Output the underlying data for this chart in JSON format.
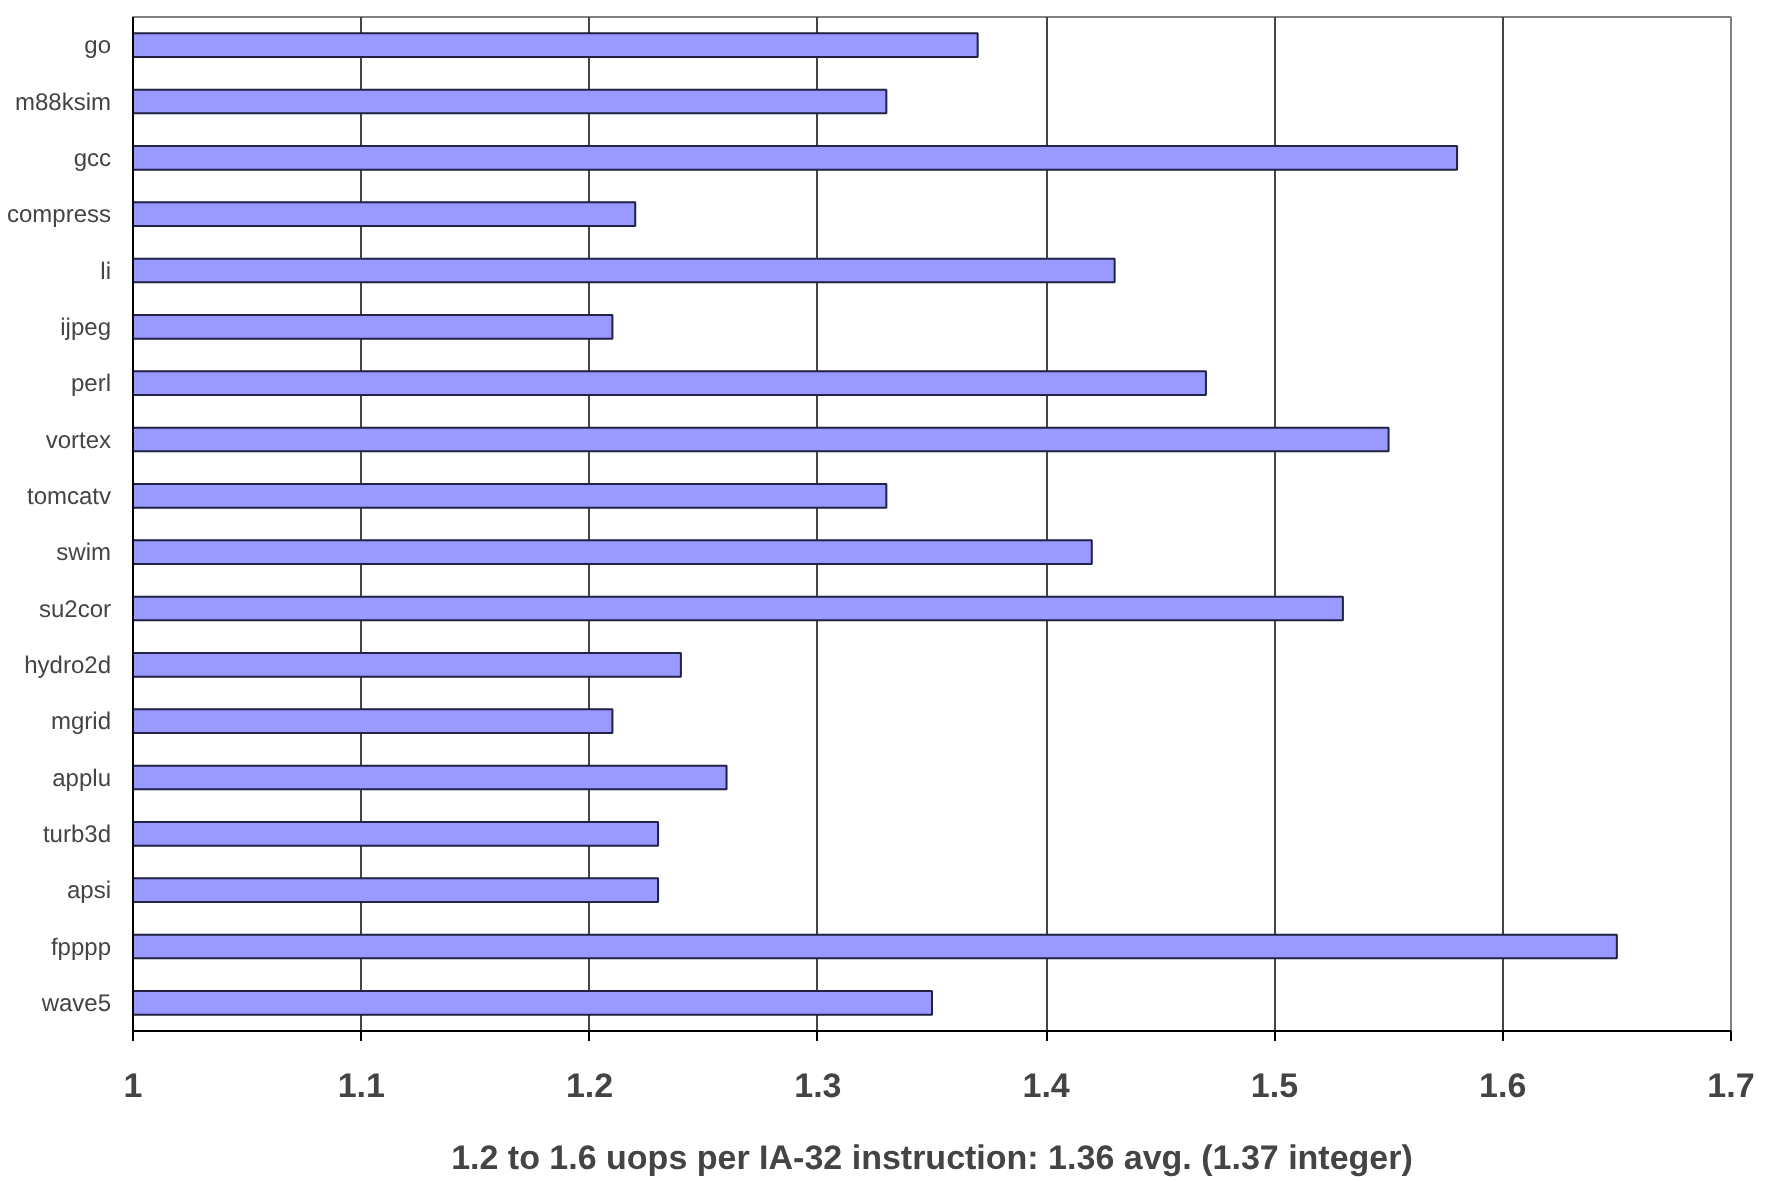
{
  "chart_data": {
    "type": "bar",
    "orientation": "horizontal",
    "categories": [
      "go",
      "m88ksim",
      "gcc",
      "compress",
      "li",
      "ijpeg",
      "perl",
      "vortex",
      "tomcatv",
      "swim",
      "su2cor",
      "hydro2d",
      "mgrid",
      "applu",
      "turb3d",
      "apsi",
      "fpppp",
      "wave5"
    ],
    "values": [
      1.37,
      1.33,
      1.58,
      1.22,
      1.43,
      1.21,
      1.47,
      1.55,
      1.33,
      1.42,
      1.53,
      1.24,
      1.21,
      1.26,
      1.23,
      1.23,
      1.65,
      1.35
    ],
    "color": "#9999ff",
    "xlim": [
      1,
      1.7
    ],
    "xticks": [
      1,
      1.1,
      1.2,
      1.3,
      1.4,
      1.5,
      1.6,
      1.7
    ],
    "xlabel": "1.2 to 1.6 uops per IA-32 instruction: 1.36 avg. (1.37 integer)",
    "grid": "x"
  }
}
